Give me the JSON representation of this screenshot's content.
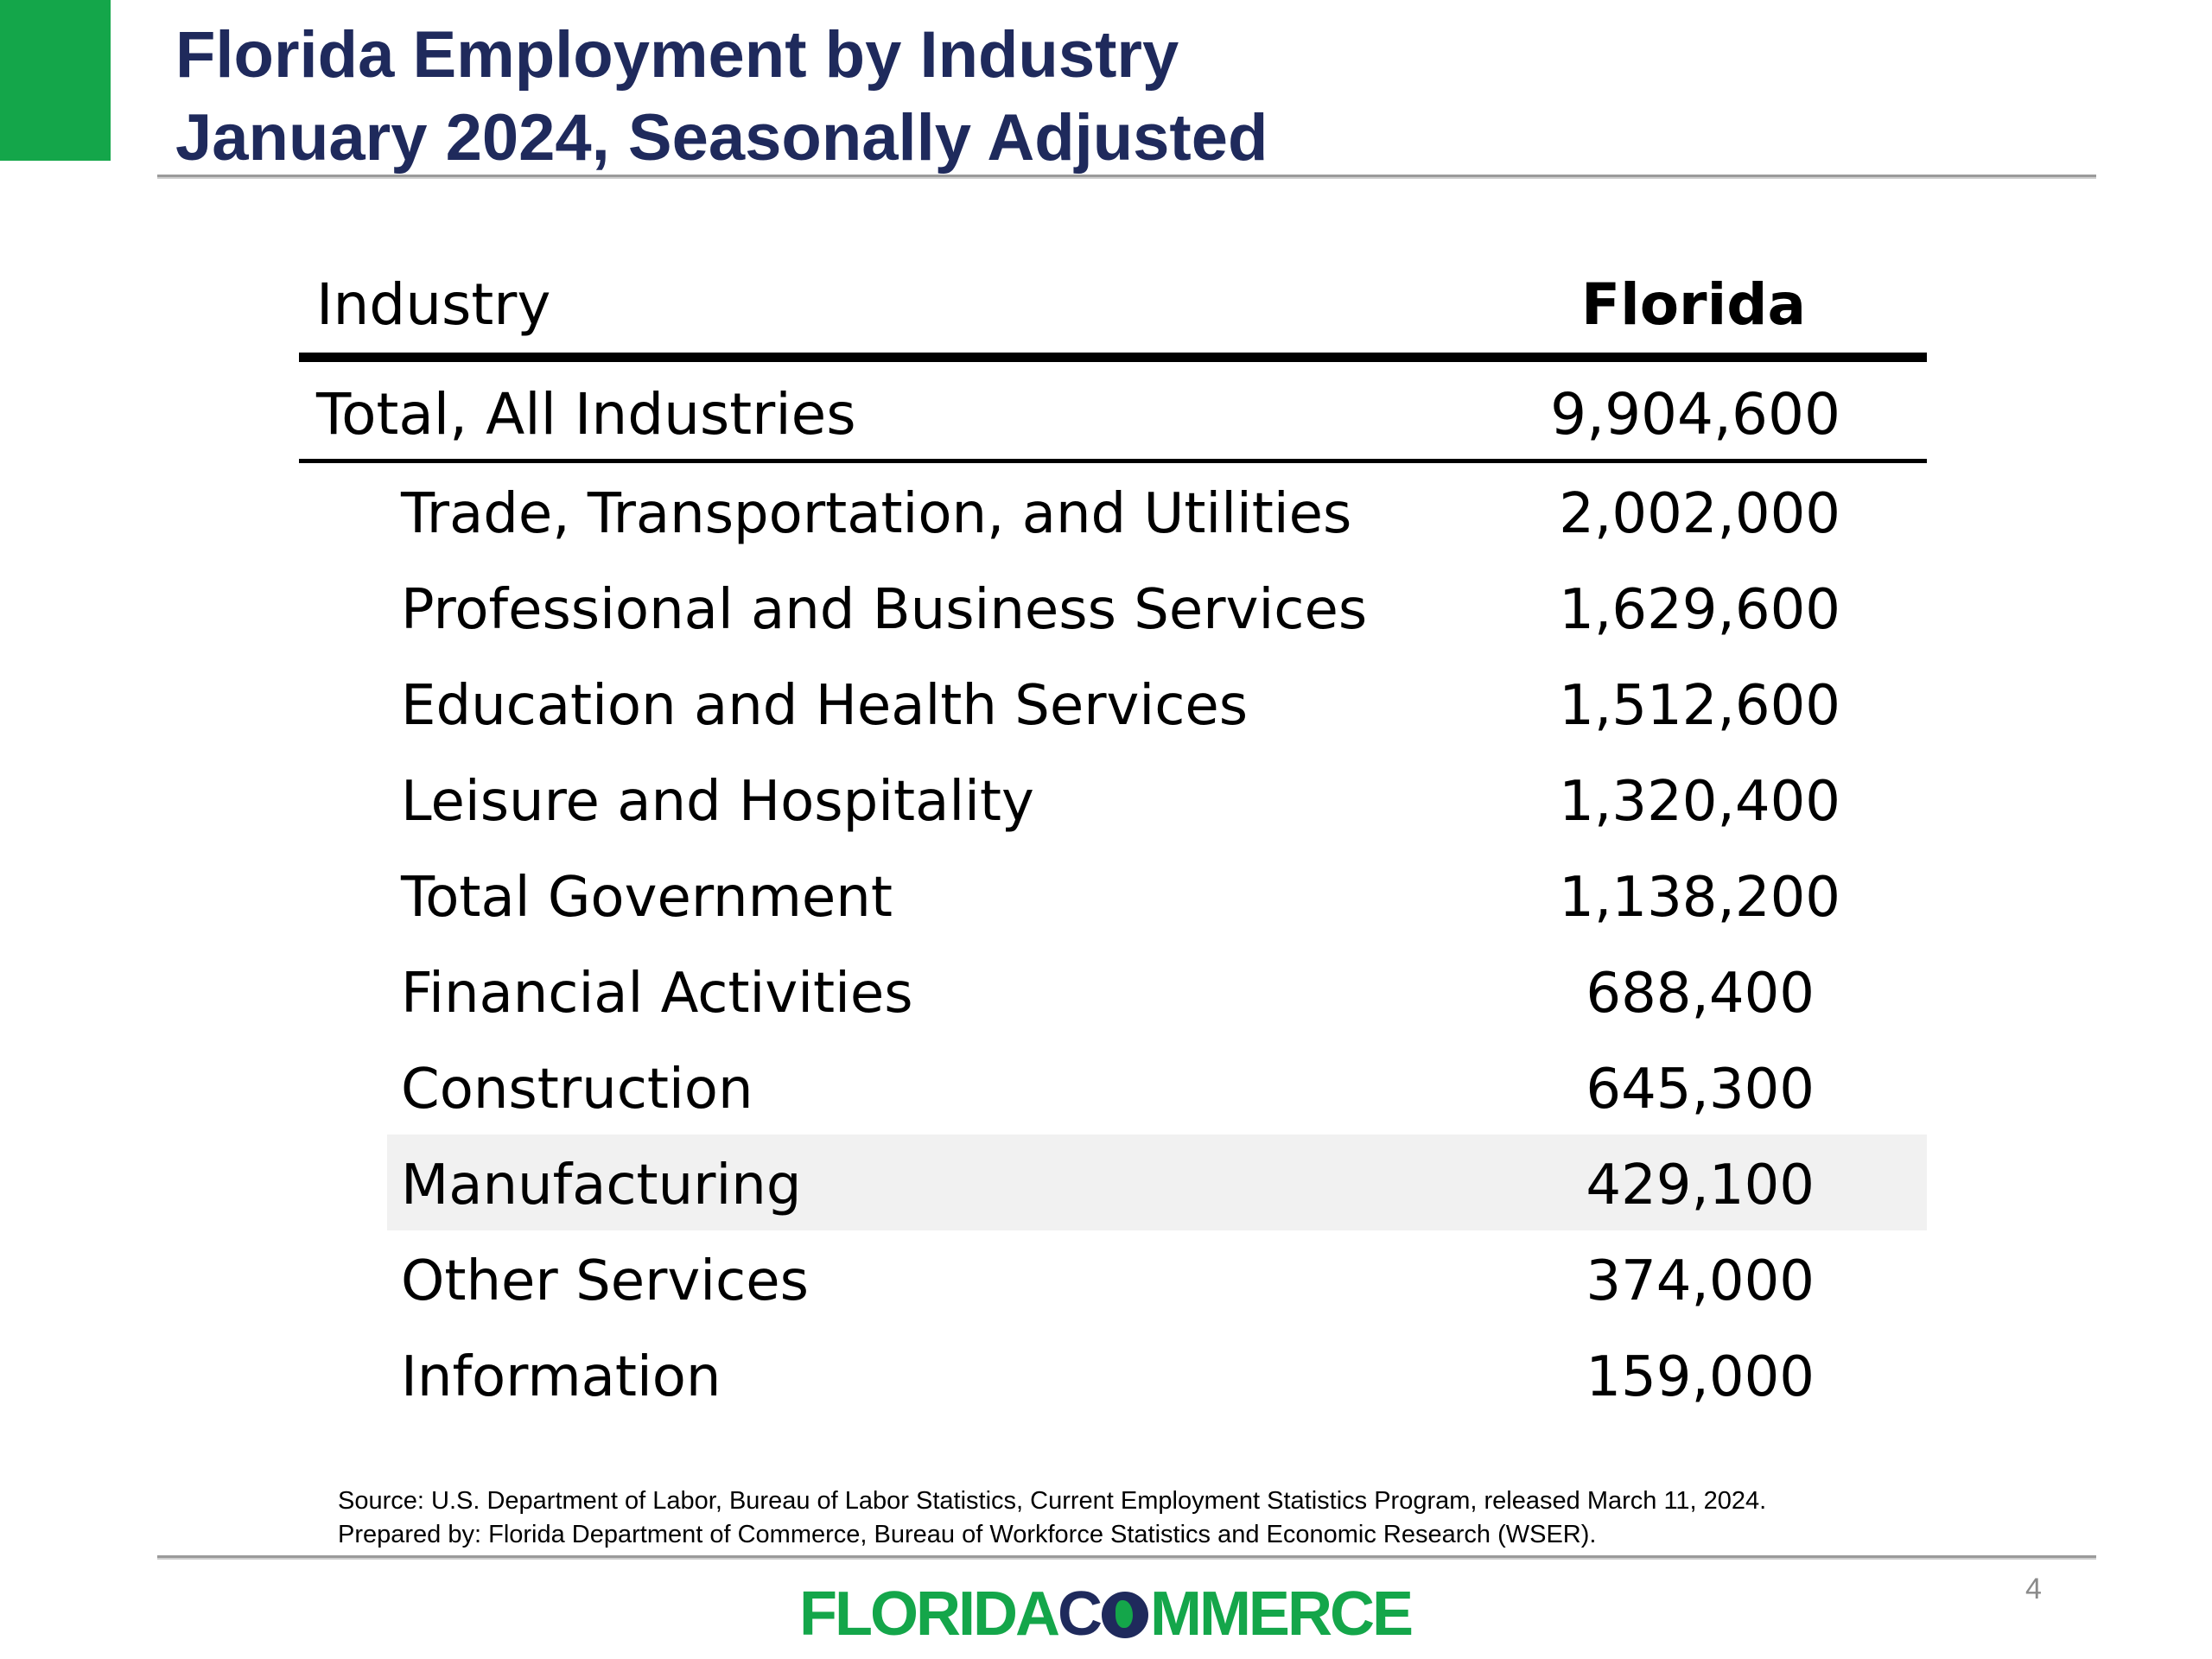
{
  "slide": {
    "title_line1": "Florida Employment by Industry",
    "title_line2": "January 2024, Seasonally Adjusted",
    "page_number": "4",
    "accent_color": "#14a64a",
    "title_color": "#1f2a5c"
  },
  "table": {
    "headers": {
      "industry": "Industry",
      "florida": "Florida"
    },
    "total": {
      "label": "Total, All Industries",
      "value": "9,904,600"
    },
    "rows": [
      {
        "label": "Trade, Transportation, and Utilities",
        "value": "2,002,000"
      },
      {
        "label": "Professional and Business Services",
        "value": "1,629,600"
      },
      {
        "label": "Education and Health Services",
        "value": "1,512,600"
      },
      {
        "label": "Leisure and Hospitality",
        "value": "1,320,400"
      },
      {
        "label": "Total Government",
        "value": "1,138,200"
      },
      {
        "label": "Financial Activities",
        "value": "688,400"
      },
      {
        "label": "Construction",
        "value": "645,300"
      },
      {
        "label": "Manufacturing",
        "value": "429,100"
      },
      {
        "label": "Other Services",
        "value": "374,000"
      },
      {
        "label": "Information",
        "value": "159,000"
      }
    ]
  },
  "footer": {
    "source": "Source:  U.S. Department of Labor, Bureau of Labor Statistics, Current Employment Statistics Program, released March 11, 2024.",
    "prepared_by": "Prepared by:  Florida Department of Commerce, Bureau of Workforce Statistics and Economic Research (WSER).",
    "logo_left": "FLORIDA",
    "logo_c": "C",
    "logo_right": "MMERCE"
  }
}
